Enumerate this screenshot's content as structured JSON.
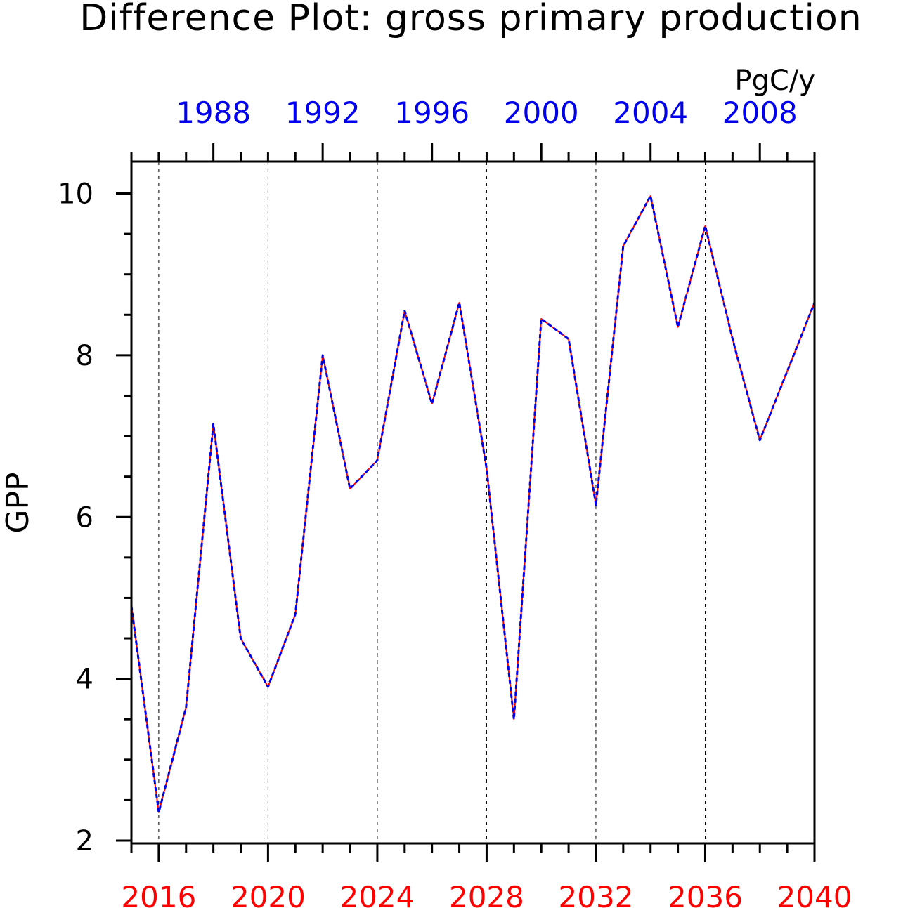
{
  "colors": {
    "series_red": "#ff0000",
    "series_blue": "#0000ee",
    "bottom_axis": "#ff0000",
    "top_axis": "#0000ee",
    "frame": "#000000"
  },
  "chart_data": {
    "type": "line",
    "title": "Difference Plot: gross primary production",
    "units": "PgC/y",
    "ylabel": "GPP",
    "ylim": [
      2,
      10.4
    ],
    "y_ticks": [
      2,
      4,
      6,
      8,
      10
    ],
    "y_minor_step": 0.5,
    "grid": "vertical dashed lines at bottom-axis major ticks",
    "x_bottom": {
      "range": [
        2015,
        2040
      ],
      "ticks": [
        2016,
        2020,
        2024,
        2028,
        2032,
        2036,
        2040
      ],
      "tick_labels": [
        "2016",
        "2020",
        "2024",
        "2028",
        "2032",
        "2036",
        "2040"
      ]
    },
    "x_top": {
      "range": [
        1985,
        2010
      ],
      "ticks": [
        1988,
        1992,
        1996,
        2000,
        2004,
        2008
      ],
      "tick_labels": [
        "1988",
        "1992",
        "1996",
        "2000",
        "2004",
        "2008"
      ]
    },
    "x": [
      2015,
      2016,
      2017,
      2018,
      2019,
      2020,
      2021,
      2022,
      2023,
      2024,
      2025,
      2026,
      2027,
      2028,
      2029,
      2030,
      2031,
      2032,
      2033,
      2034,
      2035,
      2036,
      2037,
      2038,
      2039,
      2040
    ],
    "series": [
      {
        "axis": "bottom",
        "style": "solid",
        "color": "#ff0000",
        "values": [
          4.9,
          2.35,
          3.65,
          7.15,
          4.5,
          3.9,
          4.8,
          8.0,
          6.35,
          6.7,
          8.55,
          7.4,
          8.65,
          6.6,
          3.5,
          8.45,
          8.2,
          6.15,
          9.35,
          9.97,
          8.35,
          9.6,
          8.2,
          6.95,
          7.8,
          8.65
        ]
      },
      {
        "axis": "top",
        "style": "dashed",
        "color": "#0000ee",
        "values": [
          4.9,
          2.35,
          3.65,
          7.15,
          4.5,
          3.9,
          4.8,
          8.0,
          6.35,
          6.7,
          8.55,
          7.4,
          8.65,
          6.6,
          3.5,
          8.45,
          8.2,
          6.15,
          9.35,
          9.97,
          8.35,
          9.6,
          8.2,
          6.95,
          7.8,
          8.65
        ]
      }
    ]
  }
}
